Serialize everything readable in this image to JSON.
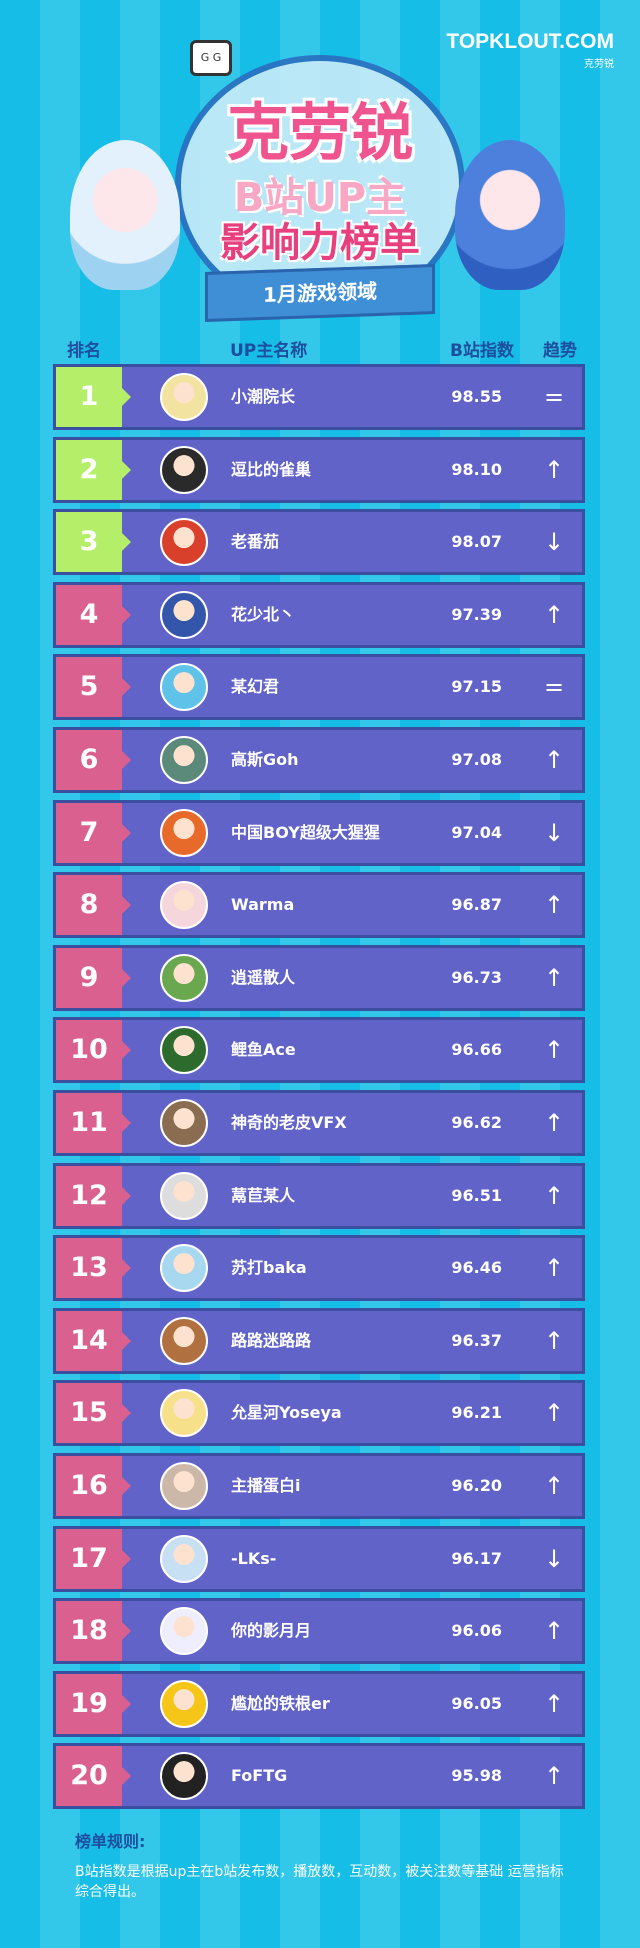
{
  "logo": {
    "brand": "TOPKLOUT.COM",
    "sub": "克劳锐"
  },
  "title": {
    "line1": "克劳锐",
    "line2": "B站UP主",
    "line3": "影响力榜单",
    "ribbon": "1月游戏领域"
  },
  "headers": {
    "rank": "排名",
    "name": "UP主名称",
    "index": "B站指数",
    "trend": "趋势"
  },
  "colors": {
    "top3": "#b5ef6a",
    "others": "#d9608f",
    "row": "#6163c9"
  },
  "rows": [
    {
      "rank": "1",
      "name": "小潮院长",
      "score": "98.55",
      "trend": "="
    },
    {
      "rank": "2",
      "name": "逗比的雀巢",
      "score": "98.10",
      "trend": "↑"
    },
    {
      "rank": "3",
      "name": "老番茄",
      "score": "98.07",
      "trend": "↓"
    },
    {
      "rank": "4",
      "name": "花少北丶",
      "score": "97.39",
      "trend": "↑"
    },
    {
      "rank": "5",
      "name": "某幻君",
      "score": "97.15",
      "trend": "="
    },
    {
      "rank": "6",
      "name": "高斯Goh",
      "score": "97.08",
      "trend": "↑"
    },
    {
      "rank": "7",
      "name": "中国BOY超级大猩猩",
      "score": "97.04",
      "trend": "↓"
    },
    {
      "rank": "8",
      "name": "Warma",
      "score": "96.87",
      "trend": "↑"
    },
    {
      "rank": "9",
      "name": "逍遥散人",
      "score": "96.73",
      "trend": "↑"
    },
    {
      "rank": "10",
      "name": "鲤鱼Ace",
      "score": "96.66",
      "trend": "↑"
    },
    {
      "rank": "11",
      "name": "神奇的老皮VFX",
      "score": "96.62",
      "trend": "↑"
    },
    {
      "rank": "12",
      "name": "蒚苣某人",
      "score": "96.51",
      "trend": "↑"
    },
    {
      "rank": "13",
      "name": "苏打baka",
      "score": "96.46",
      "trend": "↑"
    },
    {
      "rank": "14",
      "name": "路路迷路路",
      "score": "96.37",
      "trend": "↑"
    },
    {
      "rank": "15",
      "name": "允星河Yoseya",
      "score": "96.21",
      "trend": "↑"
    },
    {
      "rank": "16",
      "name": "主播蛋白i",
      "score": "96.20",
      "trend": "↑"
    },
    {
      "rank": "17",
      "name": "-LKs-",
      "score": "96.17",
      "trend": "↓"
    },
    {
      "rank": "18",
      "name": "你的影月月",
      "score": "96.06",
      "trend": "↑"
    },
    {
      "rank": "19",
      "name": "尴尬的铁根er",
      "score": "96.05",
      "trend": "↑"
    },
    {
      "rank": "20",
      "name": "FoFTG",
      "score": "95.98",
      "trend": "↑"
    }
  ],
  "rules": {
    "title": "榜单规则:",
    "text": "B站指数是根据up主在b站发布数，播放数，互动数，被关注数等基础 运营指标综合得出。"
  }
}
